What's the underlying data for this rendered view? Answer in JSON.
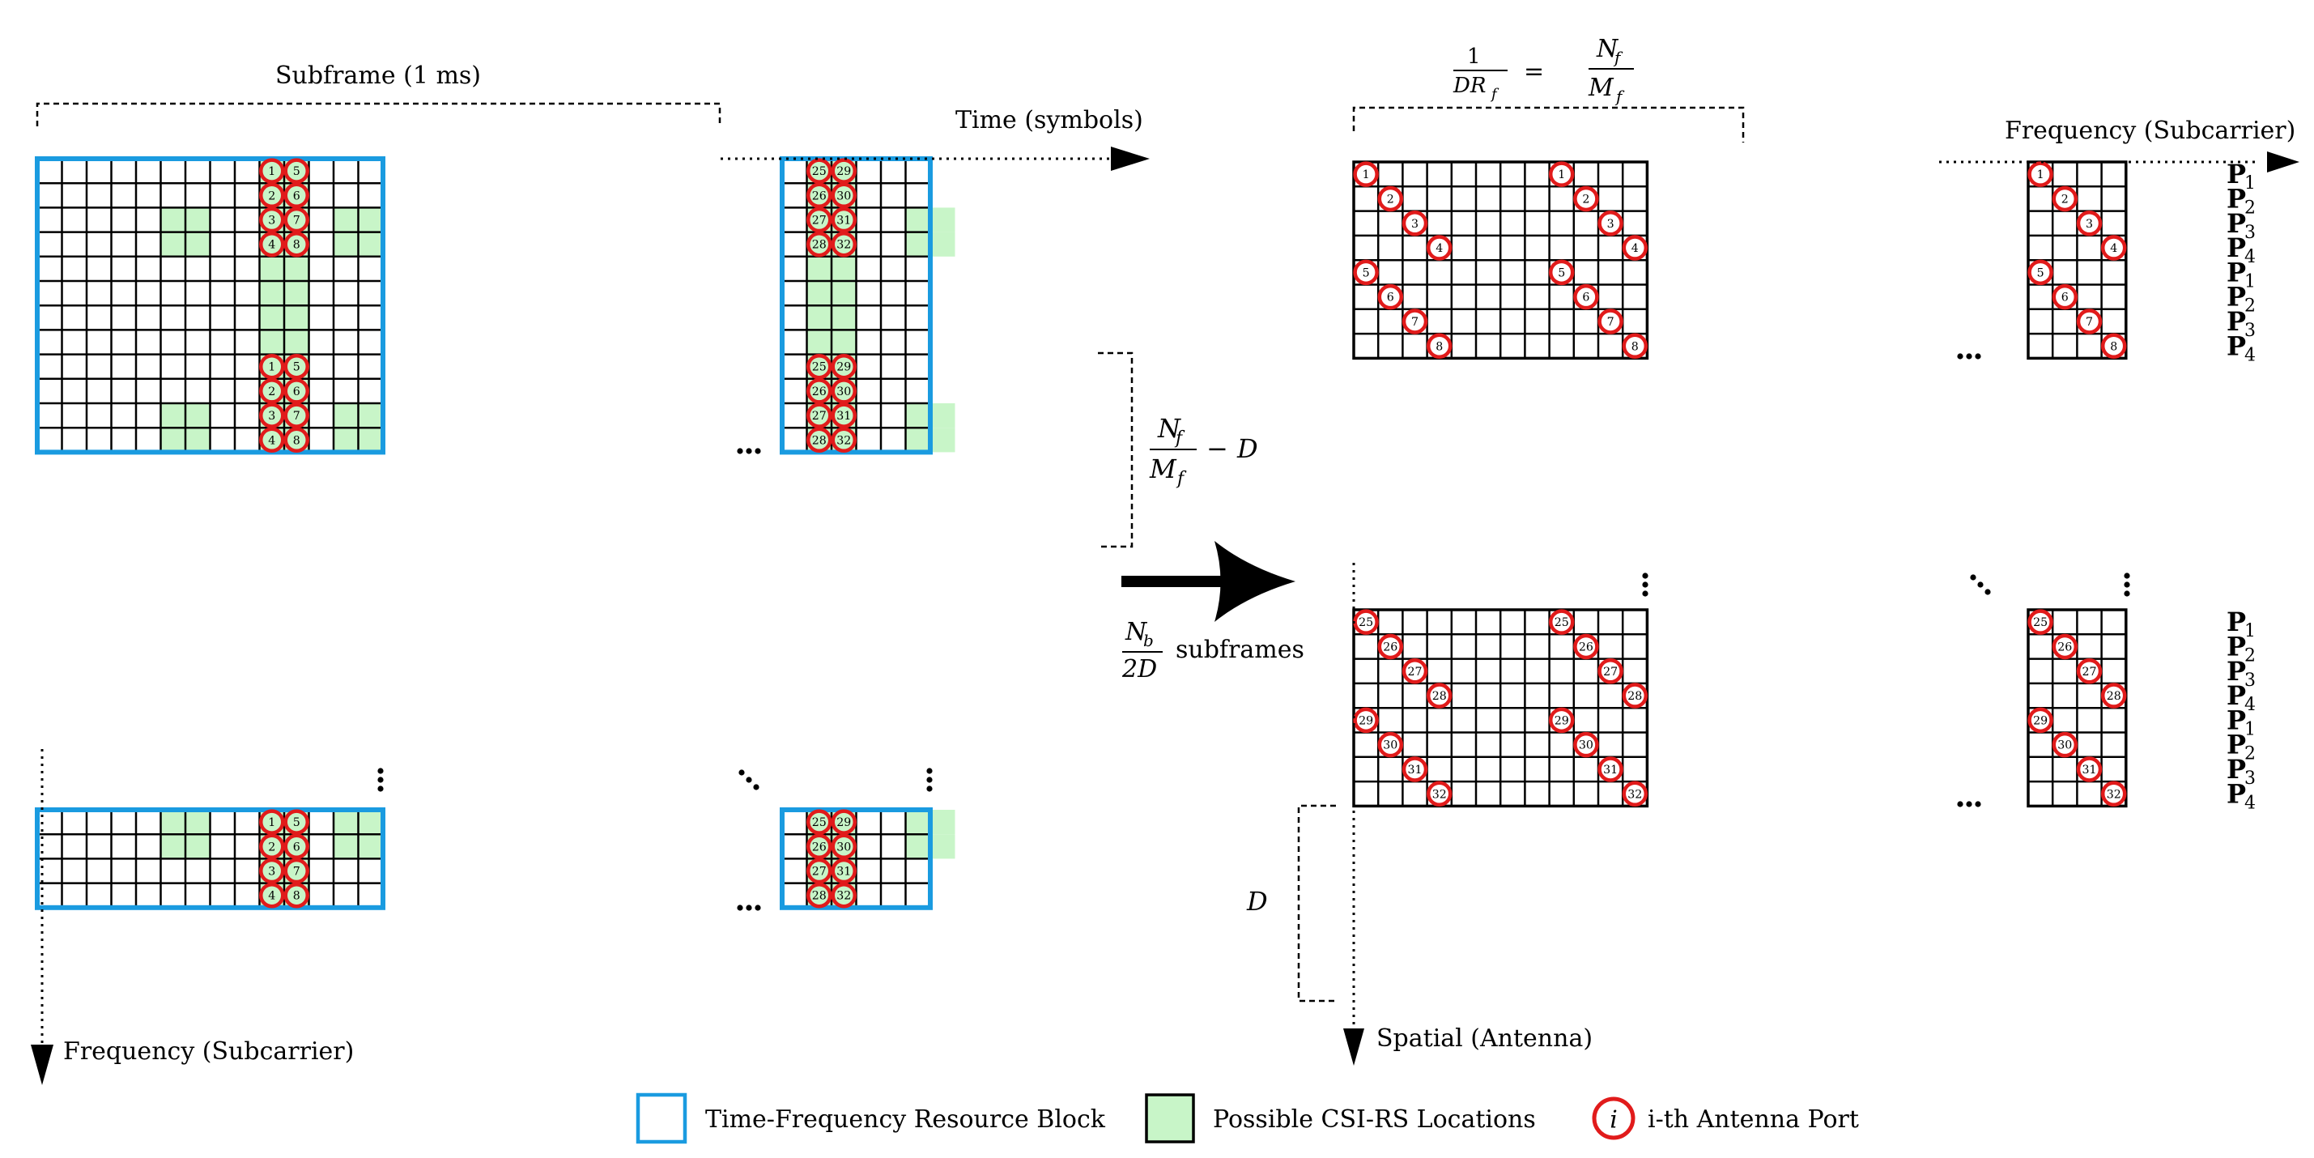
{
  "title": "",
  "left_panel": {
    "subframe_label": "Subframe (1 ms)",
    "time_axis": "Time (symbols)",
    "frequency_axis": "Frequency (Subcarrier)",
    "gap_label_main": "N_f/M_f − D",
    "port_columns": [
      [
        1,
        5
      ],
      [
        2,
        6
      ],
      [
        3,
        7
      ],
      [
        4,
        8
      ]
    ],
    "port_columns_right": [
      [
        25,
        29
      ],
      [
        26,
        30
      ],
      [
        27,
        31
      ],
      [
        28,
        32
      ]
    ]
  },
  "transform": {
    "label": "N_b/2D subframes"
  },
  "right_panel": {
    "top_label": "1/(D R_f) = N_f/M_f",
    "frequency_axis": "Frequency (Subcarrier)",
    "spatial_axis": "Spatial (Antenna)",
    "d_label": "D",
    "ports_top": [
      1,
      2,
      3,
      4,
      5,
      6,
      7,
      8
    ],
    "ports_bottom": [
      25,
      26,
      27,
      28,
      29,
      30,
      31,
      32
    ],
    "row_labels": [
      "P1",
      "P2",
      "P3",
      "P4",
      "P1",
      "P2",
      "P3",
      "P4"
    ]
  },
  "legend": {
    "resource_block": "Time-Frequency Resource Block",
    "csi_rs": "Possible CSI-RS Locations",
    "antenna_port": "i-th Antenna Port",
    "antenna_port_symbol": "i"
  },
  "colors": {
    "block_border": "#1a9be0",
    "csi_fill": "#c8f5c8",
    "port_circle": "#e11b1b",
    "grid": "#000000"
  }
}
